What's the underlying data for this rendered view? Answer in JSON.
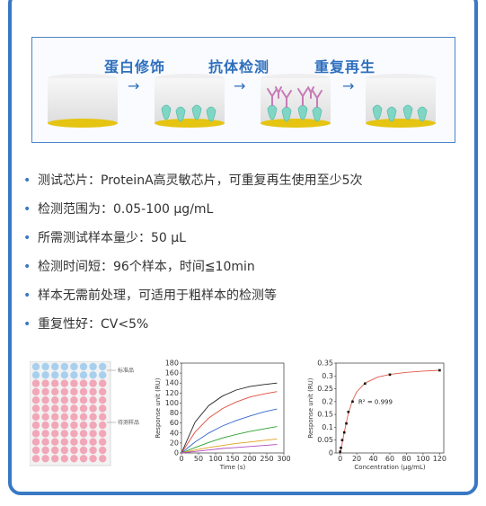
{
  "process": {
    "steps": [
      "蛋白修饰",
      "抗体检测",
      "重复再生"
    ],
    "arrow": "→"
  },
  "features": [
    "测试芯片：ProteinA高灵敏芯片，可重复再生使用至少5次",
    "检测范围为：0.05-100 μg/mL",
    "所需测试样本量少：50 μL",
    "检测时间短：96个样本，时间≦10min",
    "样本无需前处理，可适用于粗样本的检测等",
    "重复性好：CV<5%"
  ],
  "plate": {
    "standard_label": "标准品",
    "sample_label": "待测样品",
    "colors": {
      "standard": "#a8d0ee",
      "sample": "#f2a7b8"
    }
  },
  "chart_data": [
    {
      "type": "line",
      "xlabel": "Time (s)",
      "ylabel": "Response unit (RU)",
      "xlim": [
        0,
        300
      ],
      "ylim": [
        0,
        180
      ],
      "xticks": [
        0,
        50,
        100,
        150,
        200,
        250,
        300
      ],
      "yticks": [
        0,
        20,
        40,
        60,
        80,
        100,
        120,
        140,
        160,
        180
      ],
      "series": [
        {
          "color": "#222222",
          "values": [
            [
              0,
              0
            ],
            [
              40,
              62
            ],
            [
              80,
              95
            ],
            [
              120,
              114
            ],
            [
              160,
              126
            ],
            [
              200,
              133
            ],
            [
              240,
              137
            ],
            [
              280,
              140
            ]
          ]
        },
        {
          "color": "#e14b3b",
          "values": [
            [
              0,
              0
            ],
            [
              40,
              42
            ],
            [
              80,
              70
            ],
            [
              120,
              89
            ],
            [
              160,
              102
            ],
            [
              200,
              112
            ],
            [
              240,
              118
            ],
            [
              280,
              123
            ]
          ]
        },
        {
          "color": "#3366cc",
          "values": [
            [
              0,
              0
            ],
            [
              40,
              22
            ],
            [
              80,
              40
            ],
            [
              120,
              54
            ],
            [
              160,
              65
            ],
            [
              200,
              74
            ],
            [
              240,
              82
            ],
            [
              280,
              88
            ]
          ]
        },
        {
          "color": "#2ca02c",
          "values": [
            [
              0,
              0
            ],
            [
              40,
              11
            ],
            [
              80,
              21
            ],
            [
              120,
              30
            ],
            [
              160,
              37
            ],
            [
              200,
              43
            ],
            [
              240,
              48
            ],
            [
              280,
              53
            ]
          ]
        },
        {
          "color": "#e0a020",
          "values": [
            [
              0,
              0
            ],
            [
              40,
              6
            ],
            [
              80,
              11
            ],
            [
              120,
              15
            ],
            [
              160,
              19
            ],
            [
              200,
              22
            ],
            [
              240,
              25
            ],
            [
              280,
              28
            ]
          ]
        },
        {
          "color": "#b04ac0",
          "values": [
            [
              0,
              0
            ],
            [
              40,
              3
            ],
            [
              80,
              6
            ],
            [
              120,
              9
            ],
            [
              160,
              11
            ],
            [
              200,
              13
            ],
            [
              240,
              15
            ],
            [
              280,
              17
            ]
          ]
        }
      ]
    },
    {
      "type": "scatter",
      "xlabel": "Concentration (μg/mL)",
      "ylabel": "Response unit (RU)",
      "xlim": [
        -5,
        125
      ],
      "ylim": [
        0,
        0.35
      ],
      "xticks": [
        0,
        20,
        40,
        60,
        80,
        100,
        120
      ],
      "yticks": [
        0,
        0.05,
        0.1,
        0.15,
        0.2,
        0.25,
        0.3,
        0.35
      ],
      "annotation": "R² = 0.999",
      "points": [
        [
          0.05,
          0.005
        ],
        [
          1,
          0.02
        ],
        [
          2.5,
          0.05
        ],
        [
          5,
          0.08
        ],
        [
          7.5,
          0.115
        ],
        [
          10,
          0.16
        ],
        [
          15,
          0.2
        ],
        [
          30,
          0.27
        ],
        [
          60,
          0.305
        ],
        [
          120,
          0.322
        ]
      ],
      "fit": [
        [
          0,
          0.003
        ],
        [
          2,
          0.03
        ],
        [
          5,
          0.08
        ],
        [
          10,
          0.155
        ],
        [
          15,
          0.205
        ],
        [
          20,
          0.238
        ],
        [
          30,
          0.272
        ],
        [
          45,
          0.295
        ],
        [
          60,
          0.306
        ],
        [
          80,
          0.314
        ],
        [
          100,
          0.319
        ],
        [
          120,
          0.322
        ]
      ],
      "point_color": "#111111",
      "fit_color": "#e05a4b"
    }
  ]
}
